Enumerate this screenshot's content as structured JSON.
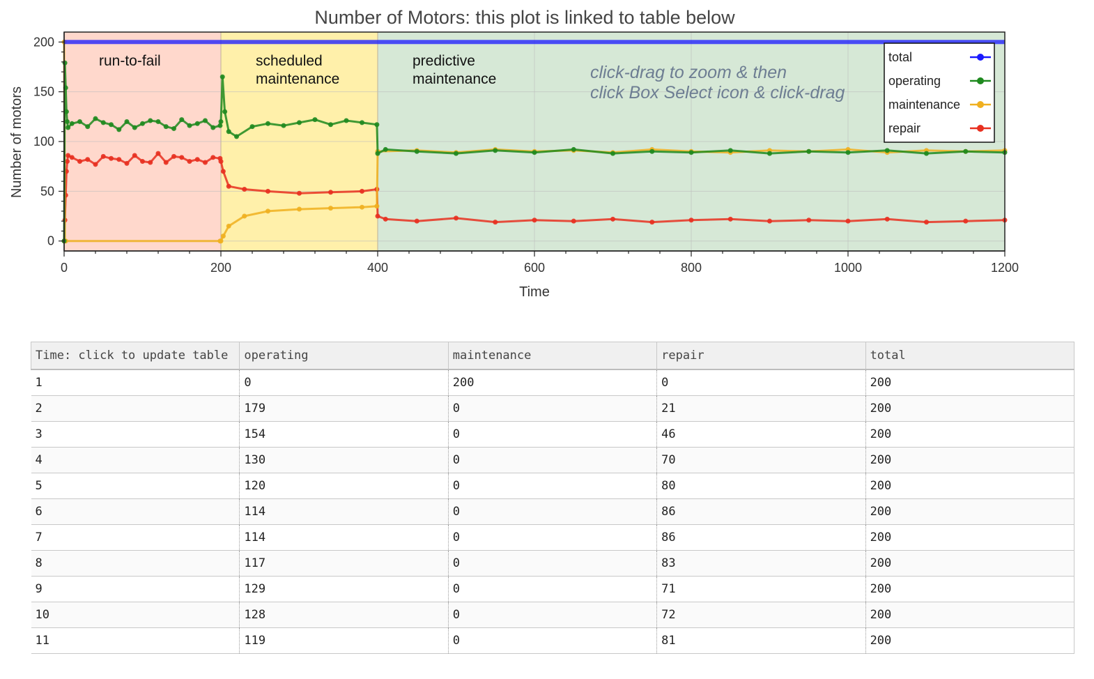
{
  "chart_data": {
    "type": "line",
    "title": "Number of Motors: this plot is linked to table below",
    "xlabel": "Time",
    "ylabel": "Number of motors",
    "xlim": [
      0,
      1200
    ],
    "ylim": [
      -10,
      210
    ],
    "x_ticks": [
      0,
      200,
      400,
      600,
      800,
      1000,
      1200
    ],
    "y_ticks": [
      0,
      50,
      100,
      150,
      200
    ],
    "grid": true,
    "legend_position": "top-right",
    "regions": [
      {
        "start": 0,
        "end": 200,
        "label_lines": [
          "run-to-fail"
        ],
        "color": "#ffd8cc"
      },
      {
        "start": 200,
        "end": 400,
        "label_lines": [
          "scheduled",
          "maintenance"
        ],
        "color": "#fff0aa"
      },
      {
        "start": 400,
        "end": 1200,
        "label_lines": [
          "predictive",
          "maintenance"
        ],
        "color": "#d6e8d6"
      }
    ],
    "annotation_lines": [
      "click-drag to zoom & then",
      "click Box Select icon & click-drag"
    ],
    "series": [
      {
        "name": "total",
        "color": "#1a1aff",
        "x": [
          0,
          1200
        ],
        "y": [
          200,
          200
        ]
      },
      {
        "name": "operating",
        "color": "#1f8a1f",
        "x": [
          0,
          1,
          2,
          3,
          4,
          5,
          10,
          20,
          30,
          40,
          50,
          60,
          70,
          80,
          90,
          100,
          110,
          120,
          130,
          140,
          150,
          160,
          170,
          180,
          190,
          199,
          200,
          202,
          205,
          210,
          220,
          240,
          260,
          280,
          300,
          320,
          340,
          360,
          380,
          399,
          400,
          410,
          450,
          500,
          550,
          600,
          650,
          700,
          750,
          800,
          850,
          900,
          950,
          1000,
          1050,
          1100,
          1150,
          1200
        ],
        "y": [
          0,
          179,
          154,
          130,
          120,
          114,
          118,
          120,
          115,
          123,
          119,
          117,
          112,
          120,
          114,
          118,
          121,
          120,
          115,
          113,
          122,
          116,
          118,
          121,
          114,
          116,
          120,
          165,
          130,
          110,
          105,
          115,
          118,
          116,
          119,
          122,
          117,
          121,
          119,
          117,
          88,
          92,
          90,
          88,
          91,
          89,
          92,
          88,
          90,
          89,
          91,
          88,
          90,
          89,
          91,
          88,
          90,
          89
        ]
      },
      {
        "name": "maintenance",
        "color": "#f0b020",
        "x": [
          0,
          1,
          2,
          199,
          200,
          203,
          210,
          230,
          260,
          300,
          340,
          380,
          399,
          400,
          450,
          500,
          550,
          600,
          650,
          700,
          750,
          800,
          850,
          900,
          950,
          1000,
          1050,
          1100,
          1150,
          1200
        ],
        "y": [
          200,
          0,
          0,
          0,
          0,
          5,
          15,
          25,
          30,
          32,
          33,
          34,
          35,
          90,
          91,
          89,
          92,
          90,
          91,
          89,
          92,
          90,
          89,
          91,
          90,
          92,
          89,
          91,
          90,
          91
        ]
      },
      {
        "name": "repair",
        "color": "#e83020",
        "x": [
          0,
          1,
          2,
          3,
          4,
          5,
          10,
          20,
          30,
          40,
          50,
          60,
          70,
          80,
          90,
          100,
          110,
          120,
          130,
          140,
          150,
          160,
          170,
          180,
          190,
          199,
          200,
          203,
          210,
          230,
          260,
          300,
          340,
          380,
          399,
          400,
          410,
          450,
          500,
          550,
          600,
          650,
          700,
          750,
          800,
          850,
          900,
          950,
          1000,
          1050,
          1100,
          1150,
          1200
        ],
        "y": [
          0,
          21,
          46,
          70,
          80,
          86,
          84,
          80,
          82,
          77,
          85,
          83,
          82,
          78,
          86,
          80,
          79,
          88,
          79,
          85,
          84,
          80,
          82,
          79,
          84,
          83,
          80,
          70,
          55,
          52,
          50,
          48,
          49,
          50,
          52,
          25,
          22,
          20,
          23,
          19,
          21,
          20,
          22,
          19,
          21,
          22,
          20,
          21,
          20,
          22,
          19,
          20,
          21
        ]
      }
    ]
  },
  "table": {
    "columns": [
      "Time: click to update table",
      "operating",
      "maintenance",
      "repair",
      "total"
    ],
    "rows": [
      [
        "1",
        "0",
        "200",
        "0",
        "200"
      ],
      [
        "2",
        "179",
        "0",
        "21",
        "200"
      ],
      [
        "3",
        "154",
        "0",
        "46",
        "200"
      ],
      [
        "4",
        "130",
        "0",
        "70",
        "200"
      ],
      [
        "5",
        "120",
        "0",
        "80",
        "200"
      ],
      [
        "6",
        "114",
        "0",
        "86",
        "200"
      ],
      [
        "7",
        "114",
        "0",
        "86",
        "200"
      ],
      [
        "8",
        "117",
        "0",
        "83",
        "200"
      ],
      [
        "9",
        "129",
        "0",
        "71",
        "200"
      ],
      [
        "10",
        "128",
        "0",
        "72",
        "200"
      ],
      [
        "11",
        "119",
        "0",
        "81",
        "200"
      ]
    ]
  }
}
